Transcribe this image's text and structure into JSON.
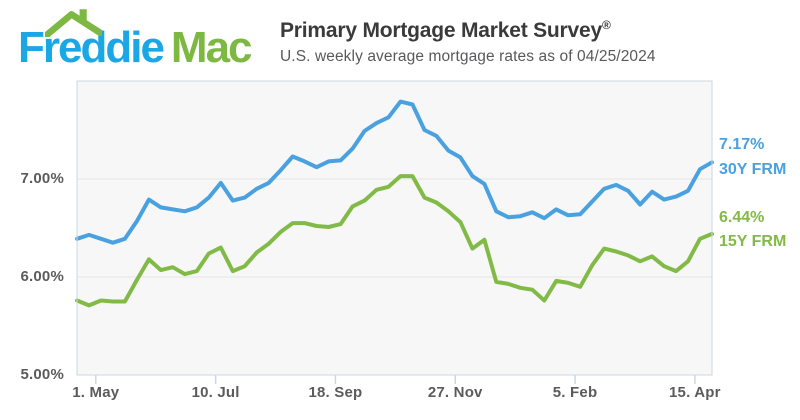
{
  "header": {
    "logo": {
      "text_part1": "Freddie",
      "text_part2": "Mac",
      "part1_color": "#1ba7e6",
      "part2_color": "#7cb842",
      "roof_icon": "house-roof-chimney-icon",
      "roof_color": "#7cb842"
    },
    "title": "Primary Mortgage Market Survey",
    "title_registered_mark": "®",
    "subtitle": "U.S. weekly average mortgage rates as of 04/25/2024"
  },
  "chart_data": {
    "type": "line",
    "title": "Primary Mortgage Market Survey",
    "x_axis": {
      "tick_labels": [
        "1. May",
        "10. Jul",
        "18. Sep",
        "27. Nov",
        "5. Feb",
        "15. Apr"
      ],
      "tick_week_offsets": [
        1.57,
        11.57,
        21.57,
        31.57,
        41.57,
        51.57
      ],
      "unit": "weekly observations, Apr 2023 - Apr 2024"
    },
    "y_axis": {
      "min": 5.0,
      "max": 8.0,
      "ticks": [
        {
          "label": "7.00%",
          "value": 7.0
        },
        {
          "label": "6.00%",
          "value": 6.0
        },
        {
          "label": "5.00%",
          "value": 5.0
        }
      ],
      "grid": true
    },
    "series": [
      {
        "name": "30Y FRM",
        "end_label": "7.17%",
        "color": "#49a1e0",
        "values": [
          6.39,
          6.43,
          6.39,
          6.35,
          6.39,
          6.57,
          6.79,
          6.71,
          6.69,
          6.67,
          6.71,
          6.81,
          6.96,
          6.78,
          6.81,
          6.9,
          6.96,
          7.09,
          7.23,
          7.18,
          7.12,
          7.18,
          7.19,
          7.31,
          7.49,
          7.57,
          7.63,
          7.79,
          7.76,
          7.5,
          7.44,
          7.29,
          7.22,
          7.03,
          6.95,
          6.67,
          6.61,
          6.62,
          6.66,
          6.6,
          6.69,
          6.63,
          6.64,
          6.77,
          6.9,
          6.94,
          6.88,
          6.74,
          6.87,
          6.79,
          6.82,
          6.88,
          7.1,
          7.17
        ]
      },
      {
        "name": "15Y FRM",
        "end_label": "6.44%",
        "color": "#82ba47",
        "values": [
          5.76,
          5.71,
          5.76,
          5.75,
          5.75,
          5.97,
          6.18,
          6.07,
          6.1,
          6.03,
          6.06,
          6.24,
          6.3,
          6.06,
          6.11,
          6.25,
          6.34,
          6.46,
          6.55,
          6.55,
          6.52,
          6.51,
          6.54,
          6.72,
          6.78,
          6.89,
          6.92,
          7.03,
          7.03,
          6.81,
          6.76,
          6.67,
          6.56,
          6.29,
          6.38,
          5.95,
          5.93,
          5.89,
          5.87,
          5.76,
          5.96,
          5.94,
          5.9,
          6.12,
          6.29,
          6.26,
          6.22,
          6.16,
          6.21,
          6.11,
          6.06,
          6.16,
          6.39,
          6.44
        ]
      }
    ],
    "legend_position": "right-of-plot end labels",
    "plot_background": "#f7f7f7",
    "border_color": "#ccd7e4",
    "grid_color": "#e4e4e4"
  }
}
